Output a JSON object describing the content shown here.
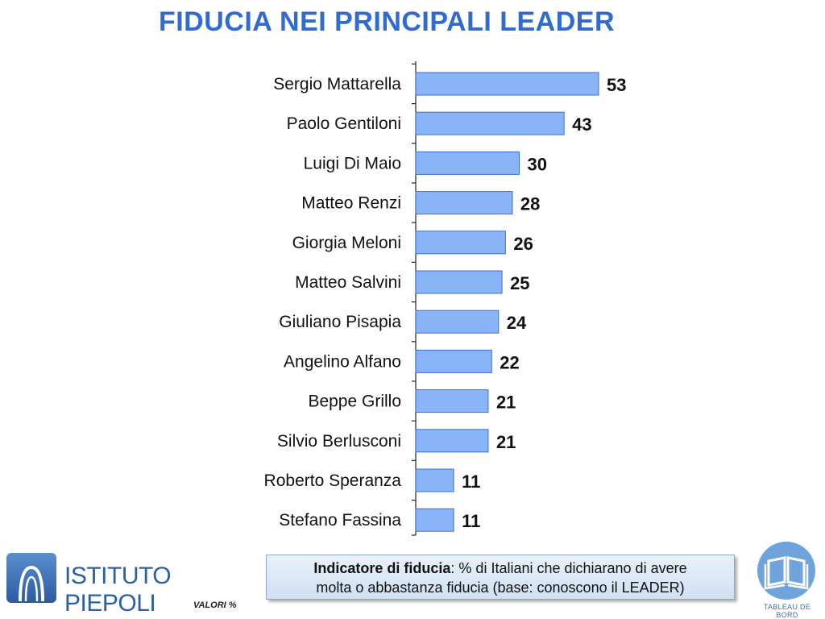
{
  "title": "FIDUCIA NEI PRINCIPALI LEADER",
  "chart_data": {
    "type": "bar",
    "orientation": "horizontal",
    "categories": [
      "Sergio Mattarella",
      "Paolo Gentiloni",
      "Luigi Di Maio",
      "Matteo Renzi",
      "Giorgia Meloni",
      "Matteo Salvini",
      "Giuliano Pisapia",
      "Angelino Alfano",
      "Beppe Grillo",
      "Silvio Berlusconi",
      "Roberto Speranza",
      "Stefano Fassina"
    ],
    "values": [
      53,
      43,
      30,
      28,
      26,
      25,
      24,
      22,
      21,
      21,
      11,
      11
    ],
    "value_labels": [
      "53",
      "43",
      "30",
      "28",
      "26",
      "25",
      "24",
      "22",
      "21",
      "21",
      "11",
      "11"
    ],
    "xlim": [
      0,
      55
    ],
    "grid": false,
    "bar_color": "#8ab4f8",
    "bar_border_color": "#3b6fd4"
  },
  "footer": {
    "logo_text": "ISTITUTO PIEPOLI",
    "valori": "VALORI %",
    "note_bold": "Indicatore di fiducia",
    "note_line1_rest": ": % di Italiani che dichiarano di avere",
    "note_line2": "molta o abbastanza fiducia (base: conoscono il LEADER)",
    "badge_text": "TABLEAU DE BORD",
    "badge_icon": "open-book-icon"
  },
  "colors": {
    "title": "#2f6bd3",
    "logo": "#2d5fa3",
    "badge": "#6fa3dc"
  }
}
